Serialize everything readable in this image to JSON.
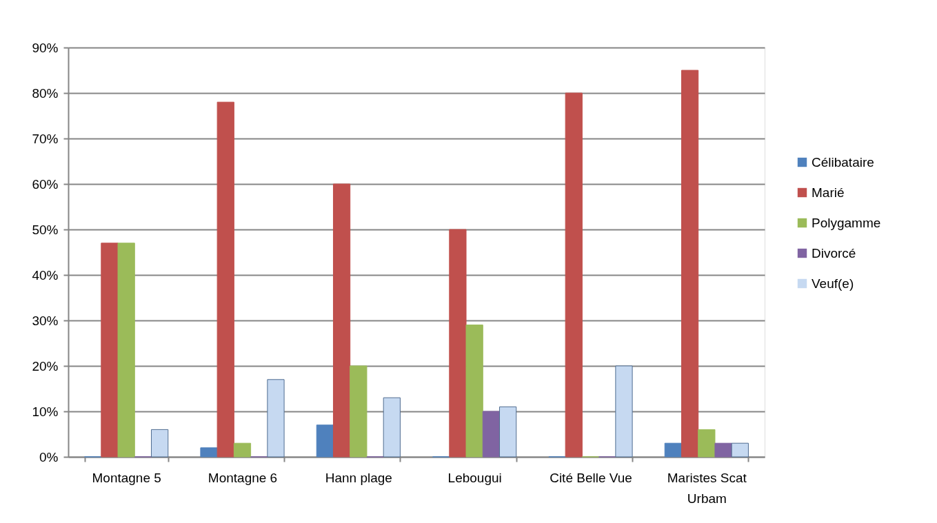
{
  "chart_data": {
    "type": "bar",
    "categories": [
      "Montagne 5",
      "Montagne 6",
      "Hann plage",
      "Lebougui",
      "Cité Belle Vue",
      "Maristes Scat Urbam"
    ],
    "series": [
      {
        "name": "Célibataire",
        "color": "#4f81bd",
        "values": [
          0,
          2,
          7,
          0,
          0,
          3
        ]
      },
      {
        "name": "Marié",
        "color": "#c0504d",
        "values": [
          47,
          78,
          60,
          50,
          80,
          85
        ]
      },
      {
        "name": "Polygamme",
        "color": "#9bbb59",
        "values": [
          47,
          3,
          20,
          29,
          0,
          6
        ]
      },
      {
        "name": "Divorcé",
        "color": "#8064a2",
        "values": [
          0,
          0,
          0,
          10,
          0,
          3
        ]
      },
      {
        "name": "Veuf(e)",
        "color": "#c6d9f1",
        "values": [
          6,
          17,
          13,
          11,
          20,
          3
        ]
      }
    ],
    "ylim": [
      0,
      90
    ],
    "yticks": [
      {
        "value": 0,
        "label": "0%"
      },
      {
        "value": 10,
        "label": "10%"
      },
      {
        "value": 20,
        "label": "20%"
      },
      {
        "value": 30,
        "label": "30%"
      },
      {
        "value": 40,
        "label": "40%"
      },
      {
        "value": 50,
        "label": "50%"
      },
      {
        "value": 60,
        "label": "60%"
      },
      {
        "value": 70,
        "label": "70%"
      },
      {
        "value": 80,
        "label": "80%"
      },
      {
        "value": 90,
        "label": "90%"
      }
    ],
    "grid": "y",
    "legend": "right"
  }
}
